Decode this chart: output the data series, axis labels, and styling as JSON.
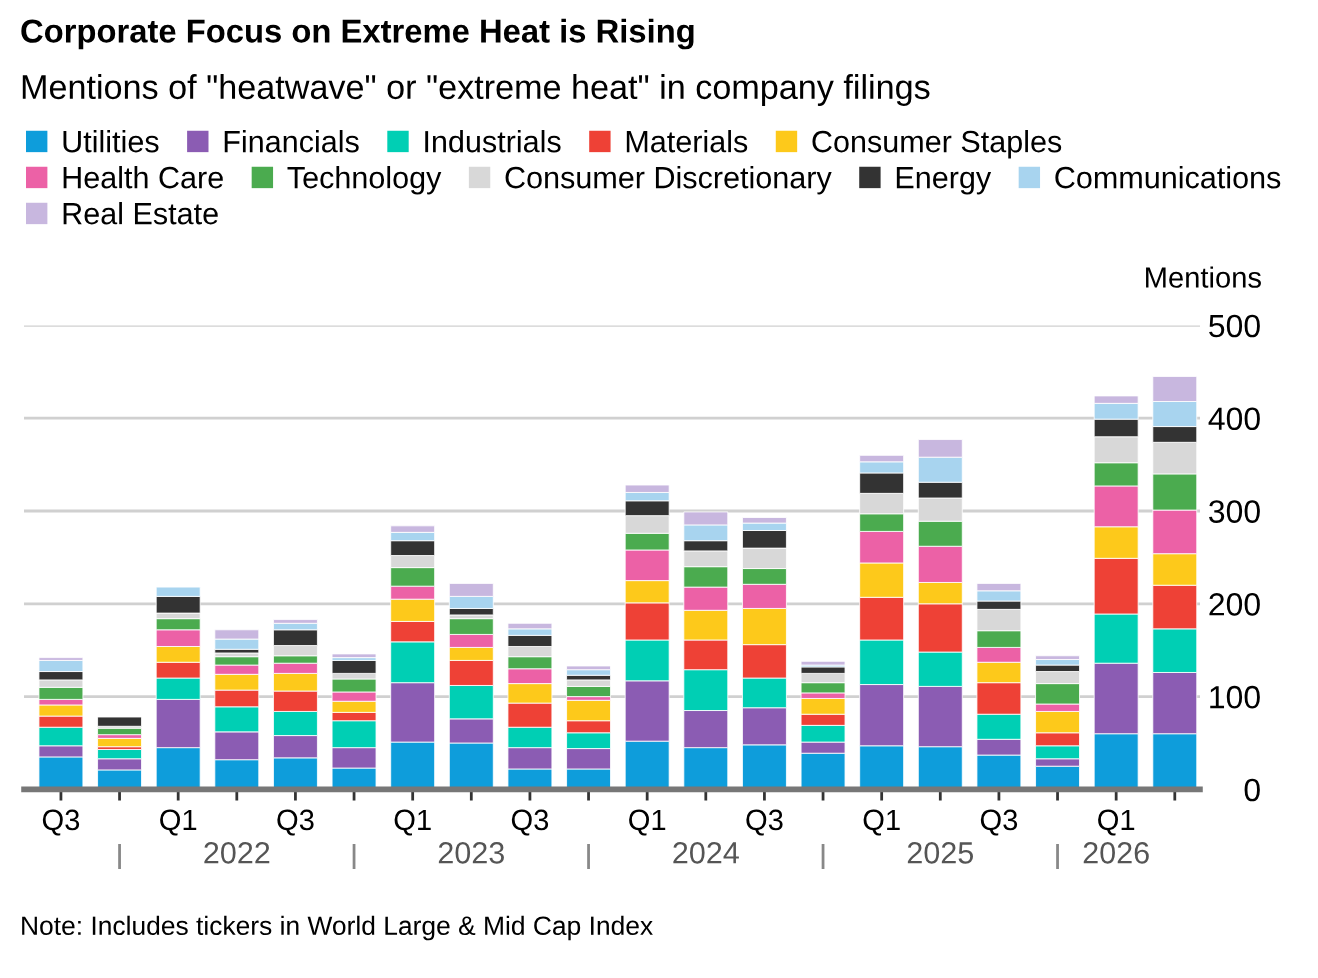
{
  "chart_data": {
    "type": "bar",
    "stacked": true,
    "title": "Corporate Focus on Extreme Heat is Rising",
    "subtitle": "Mentions of \"heatwave\" or \"extreme heat\" in company filings",
    "ylabel": "Mentions",
    "categories": [
      "Q3",
      null,
      "Q1",
      null,
      "Q3",
      null,
      "Q1",
      null,
      "Q3",
      null,
      "Q1",
      null,
      "Q3",
      null,
      "Q1",
      null,
      "Q3",
      null,
      "Q1",
      null
    ],
    "series": [
      {
        "name": "Utilities",
        "color": "#0e9ddb",
        "values": [
          35,
          21,
          45,
          32,
          34,
          23,
          51,
          50,
          22,
          22,
          52,
          45,
          48,
          39,
          47,
          46,
          37,
          25,
          60,
          60
        ]
      },
      {
        "name": "Financials",
        "color": "#8b5cb3",
        "values": [
          12,
          12,
          52,
          30,
          24,
          22,
          64,
          26,
          23,
          22,
          65,
          40,
          40,
          12,
          66,
          65,
          17,
          8,
          76,
          66
        ]
      },
      {
        "name": "Industrials",
        "color": "#00cfb4",
        "values": [
          20,
          10,
          23,
          27,
          26,
          29,
          44,
          36,
          22,
          17,
          44,
          44,
          32,
          18,
          48,
          37,
          27,
          14,
          53,
          47
        ]
      },
      {
        "name": "Materials",
        "color": "#ee4136",
        "values": [
          12,
          3,
          17,
          18,
          22,
          9,
          22,
          27,
          26,
          13,
          40,
          32,
          36,
          12,
          46,
          52,
          34,
          14,
          60,
          47
        ]
      },
      {
        "name": "Consumer Staples",
        "color": "#fdc91b",
        "values": [
          12,
          9,
          17,
          17,
          19,
          12,
          24,
          14,
          21,
          22,
          24,
          32,
          39,
          17,
          37,
          23,
          22,
          23,
          34,
          34
        ]
      },
      {
        "name": "Health Care",
        "color": "#ec61a6",
        "values": [
          6,
          4,
          18,
          10,
          11,
          10,
          14,
          14,
          16,
          4,
          33,
          25,
          26,
          6,
          34,
          39,
          16,
          8,
          44,
          47
        ]
      },
      {
        "name": "Technology",
        "color": "#4bab4f",
        "values": [
          13,
          7,
          12,
          9,
          8,
          14,
          20,
          17,
          13,
          11,
          18,
          22,
          17,
          11,
          19,
          27,
          18,
          22,
          25,
          39
        ]
      },
      {
        "name": "Consumer Discretionary",
        "color": "#d8d8d8",
        "values": [
          8,
          2,
          6,
          4,
          11,
          6,
          13,
          4,
          11,
          7,
          19,
          17,
          22,
          10,
          22,
          25,
          23,
          13,
          28,
          34
        ]
      },
      {
        "name": "Energy",
        "color": "#333333",
        "values": [
          9,
          10,
          18,
          4,
          17,
          14,
          16,
          7,
          12,
          5,
          16,
          11,
          19,
          7,
          22,
          17,
          9,
          7,
          19,
          17
        ]
      },
      {
        "name": "Communications",
        "color": "#a8d4ef",
        "values": [
          12,
          null,
          10,
          11,
          7,
          3,
          9,
          13,
          7,
          6,
          9,
          17,
          8,
          2,
          12,
          27,
          11,
          6,
          17,
          27
        ]
      },
      {
        "name": "Real Estate",
        "color": "#c8b7df",
        "values": [
          3,
          null,
          null,
          10,
          4,
          4,
          7,
          14,
          6,
          4,
          8,
          14,
          6,
          4,
          7,
          19,
          8,
          4,
          8,
          27
        ]
      }
    ],
    "ylim": [
      0,
      500
    ],
    "yticks": [
      0,
      100,
      200,
      300,
      400,
      500
    ],
    "grid": "y",
    "legend": "top left",
    "annotations": [
      "2022",
      "2023",
      "2024",
      "2025",
      "2026",
      "Note: Includes tickers in World Large & Mid Cap Index"
    ]
  }
}
